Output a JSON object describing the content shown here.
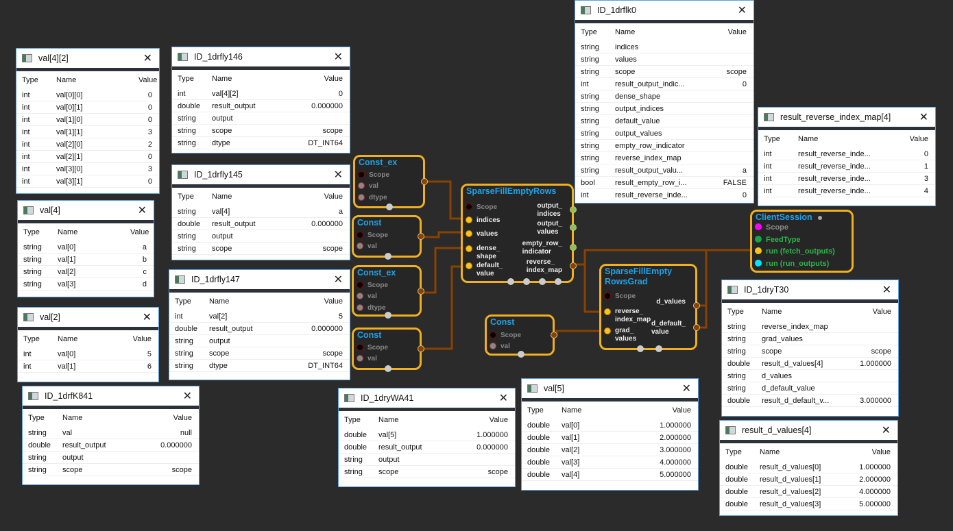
{
  "panels": [
    {
      "title": "val[4][2]",
      "headers": [
        "Type",
        "Name",
        "Value"
      ],
      "rows": [
        [
          "int",
          "val[0][0]",
          "0"
        ],
        [
          "int",
          "val[0][1]",
          "0"
        ],
        [
          "int",
          "val[1][0]",
          "0"
        ],
        [
          "int",
          "val[1][1]",
          "3"
        ],
        [
          "int",
          "val[2][0]",
          "2"
        ],
        [
          "int",
          "val[2][1]",
          "0"
        ],
        [
          "int",
          "val[3][0]",
          "3"
        ],
        [
          "int",
          "val[3][1]",
          "0"
        ]
      ]
    },
    {
      "title": "ID_1drfly146",
      "headers": [
        "Type",
        "Name",
        "Value"
      ],
      "rows": [
        [
          "int",
          "val[4][2]",
          "0"
        ],
        [
          "double",
          "result_output",
          "0.000000"
        ],
        [
          "string",
          "output",
          ""
        ],
        [
          "string",
          "scope",
          "scope"
        ],
        [
          "string",
          "dtype",
          "DT_INT64"
        ]
      ]
    },
    {
      "title": "ID_1drfly145",
      "headers": [
        "Type",
        "Name",
        "Value"
      ],
      "rows": [
        [
          "string",
          "val[4]",
          "a"
        ],
        [
          "double",
          "result_output",
          "0.000000"
        ],
        [
          "string",
          "output",
          ""
        ],
        [
          "string",
          "scope",
          "scope"
        ]
      ]
    },
    {
      "title": "ID_1drfly147",
      "headers": [
        "Type",
        "Name",
        "Value"
      ],
      "rows": [
        [
          "int",
          "val[2]",
          "5"
        ],
        [
          "double",
          "result_output",
          "0.000000"
        ],
        [
          "string",
          "output",
          ""
        ],
        [
          "string",
          "scope",
          "scope"
        ],
        [
          "string",
          "dtype",
          "DT_INT64"
        ]
      ]
    },
    {
      "title": "val[4]",
      "headers": [
        "Type",
        "Name",
        "Value"
      ],
      "rows": [
        [
          "string",
          "val[0]",
          "a"
        ],
        [
          "string",
          "val[1]",
          "b"
        ],
        [
          "string",
          "val[2]",
          "c"
        ],
        [
          "string",
          "val[3]",
          "d"
        ]
      ]
    },
    {
      "title": "val[2]",
      "headers": [
        "Type",
        "Name",
        "Value"
      ],
      "rows": [
        [
          "int",
          "val[0]",
          "5"
        ],
        [
          "int",
          "val[1]",
          "6"
        ]
      ]
    },
    {
      "title": "ID_1drfK841",
      "headers": [
        "Type",
        "Name",
        "Value"
      ],
      "rows": [
        [
          "string",
          "val",
          "null"
        ],
        [
          "double",
          "result_output",
          "0.000000"
        ],
        [
          "string",
          "output",
          ""
        ],
        [
          "string",
          "scope",
          "scope"
        ]
      ]
    },
    {
      "title": "ID_1dryWA41",
      "headers": [
        "Type",
        "Name",
        "Value"
      ],
      "rows": [
        [
          "double",
          "val[5]",
          "1.000000"
        ],
        [
          "double",
          "result_output",
          "0.000000"
        ],
        [
          "string",
          "output",
          ""
        ],
        [
          "string",
          "scope",
          "scope"
        ]
      ]
    },
    {
      "title": "val[5]",
      "headers": [
        "Type",
        "Name",
        "Value"
      ],
      "rows": [
        [
          "double",
          "val[0]",
          "1.000000"
        ],
        [
          "double",
          "val[1]",
          "2.000000"
        ],
        [
          "double",
          "val[2]",
          "3.000000"
        ],
        [
          "double",
          "val[3]",
          "4.000000"
        ],
        [
          "double",
          "val[4]",
          "5.000000"
        ]
      ]
    },
    {
      "title": "ID_1drflk0",
      "headers": [
        "Type",
        "Name",
        "Value"
      ],
      "rows": [
        [
          "string",
          "indices",
          ""
        ],
        [
          "string",
          "values",
          ""
        ],
        [
          "string",
          "scope",
          "scope"
        ],
        [
          "int",
          "result_output_indic...",
          "0"
        ],
        [
          "string",
          "dense_shape",
          ""
        ],
        [
          "string",
          "output_indices",
          ""
        ],
        [
          "string",
          "default_value",
          ""
        ],
        [
          "string",
          "output_values",
          ""
        ],
        [
          "string",
          "empty_row_indicator",
          ""
        ],
        [
          "string",
          "reverse_index_map",
          ""
        ],
        [
          "string",
          "result_output_valu...",
          "a"
        ],
        [
          "bool",
          "result_empty_row_i...",
          "FALSE"
        ],
        [
          "int",
          "result_reverse_inde...",
          "0"
        ]
      ]
    },
    {
      "title": "result_reverse_index_map[4]",
      "headers": [
        "Type",
        "Name",
        "Value"
      ],
      "rows": [
        [
          "int",
          "result_reverse_inde...",
          "0"
        ],
        [
          "int",
          "result_reverse_inde...",
          "1"
        ],
        [
          "int",
          "result_reverse_inde...",
          "3"
        ],
        [
          "int",
          "result_reverse_inde...",
          "4"
        ]
      ]
    },
    {
      "title": "ID_1dryT30",
      "headers": [
        "Type",
        "Name",
        "Value"
      ],
      "rows": [
        [
          "string",
          "reverse_index_map",
          ""
        ],
        [
          "string",
          "grad_values",
          ""
        ],
        [
          "string",
          "scope",
          "scope"
        ],
        [
          "double",
          "result_d_values[4]",
          "1.000000"
        ],
        [
          "string",
          "d_values",
          ""
        ],
        [
          "string",
          "d_default_value",
          ""
        ],
        [
          "double",
          "result_d_default_v...",
          "3.000000"
        ]
      ]
    },
    {
      "title": "result_d_values[4]",
      "headers": [
        "Type",
        "Name",
        "Value"
      ],
      "rows": [
        [
          "double",
          "result_d_values[0]",
          "1.000000"
        ],
        [
          "double",
          "result_d_values[1]",
          "2.000000"
        ],
        [
          "double",
          "result_d_values[2]",
          "4.000000"
        ],
        [
          "double",
          "result_d_values[3]",
          "5.000000"
        ]
      ]
    }
  ],
  "nodes": [
    {
      "title": "Const_ex",
      "inputs": [
        "Scope",
        "val",
        "dtype"
      ],
      "outputs": []
    },
    {
      "title": "Const",
      "inputs": [
        "Scope",
        "val"
      ],
      "outputs": []
    },
    {
      "title": "Const_ex",
      "inputs": [
        "Scope",
        "val",
        "dtype"
      ],
      "outputs": []
    },
    {
      "title": "Const",
      "inputs": [
        "Scope",
        "val"
      ],
      "outputs": []
    },
    {
      "title": "SparseFillEmptyRows",
      "inputs": [
        "Scope",
        "indices",
        "values",
        "dense_\nshape",
        "default_\nvalue"
      ],
      "outputs": [
        "output_\nindices",
        "output_\nvalues",
        "empty_row_\nindicator",
        "reverse_\nindex_map"
      ]
    },
    {
      "title": "Const",
      "inputs": [
        "Scope",
        "val"
      ],
      "outputs": []
    },
    {
      "title": "SparseFillEmpty\nRowsGrad",
      "inputs": [
        "Scope",
        "reverse_\nindex_map",
        "grad_\nvalues"
      ],
      "outputs": [
        "d_values",
        "d_default_\nvalue"
      ]
    },
    {
      "title": "ClientSession",
      "inputs": [
        "Scope",
        "FeedType",
        "run (fetch_outputs)",
        "run (run_outputs)"
      ],
      "outputs": []
    }
  ],
  "colors": {
    "wire": "#8a4200",
    "node_border": "#f0b020",
    "node_title": "#1fa3e8",
    "port_in": "#f5c518",
    "port_out_green": "#8bc34a",
    "client_text": "#2db34a"
  }
}
